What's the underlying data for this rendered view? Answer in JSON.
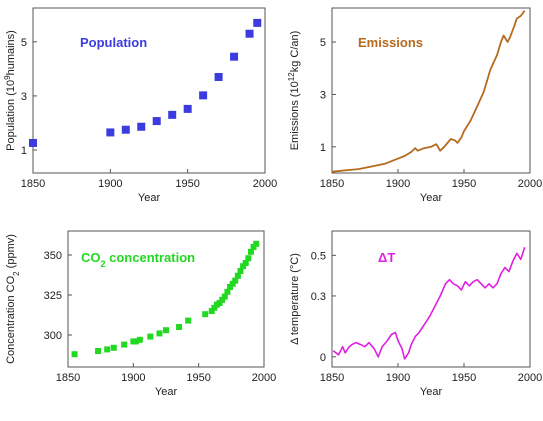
{
  "chart_data": [
    {
      "type": "scatter",
      "title": "Population",
      "color": "#3b3bdf",
      "xlabel": "Year",
      "ylabel": "Population (10^9 humains)",
      "ylabel_parts": [
        "Population (10",
        "9",
        "humains)"
      ],
      "xlim": [
        1850,
        2000
      ],
      "ylim": [
        0.15,
        6.25
      ],
      "xticks": [
        "1850",
        "1900",
        "1950",
        "2000"
      ],
      "yticks": [
        "1",
        "3",
        "5"
      ],
      "grid": false,
      "series": [
        {
          "x": [
            1850,
            1900,
            1910,
            1920,
            1930,
            1940,
            1950,
            1960,
            1970,
            1980,
            1990,
            1995
          ],
          "y": [
            1.26,
            1.65,
            1.75,
            1.86,
            2.07,
            2.3,
            2.52,
            3.02,
            3.7,
            4.45,
            5.3,
            5.7
          ]
        }
      ]
    },
    {
      "type": "line",
      "title": "Emissions",
      "color": "#b56a1e",
      "xlabel": "Year",
      "ylabel": "Emissions (10^12 kg C/an)",
      "ylabel_parts": [
        "Emissions (10",
        "12",
        "kg C/an)"
      ],
      "xlim": [
        1850,
        2000
      ],
      "ylim": [
        0,
        6.3
      ],
      "xticks": [
        "1850",
        "1900",
        "1950",
        "2000"
      ],
      "yticks": [
        "1",
        "3",
        "5"
      ],
      "grid": false,
      "series": [
        {
          "x": [
            1850,
            1860,
            1870,
            1880,
            1890,
            1900,
            1905,
            1910,
            1913,
            1915,
            1920,
            1925,
            1929,
            1932,
            1935,
            1940,
            1943,
            1945,
            1948,
            1950,
            1955,
            1960,
            1965,
            1970,
            1975,
            1978,
            1980,
            1983,
            1985,
            1988,
            1990,
            1993,
            1996
          ],
          "y": [
            0.05,
            0.1,
            0.15,
            0.25,
            0.35,
            0.55,
            0.65,
            0.8,
            0.95,
            0.85,
            0.95,
            1.0,
            1.1,
            0.85,
            1.0,
            1.3,
            1.25,
            1.15,
            1.35,
            1.6,
            2.0,
            2.55,
            3.1,
            3.95,
            4.5,
            5.0,
            5.25,
            5.0,
            5.2,
            5.6,
            5.9,
            6.0,
            6.2
          ]
        }
      ]
    },
    {
      "type": "scatter",
      "title": "CO2 concentration",
      "title_parts": [
        "CO",
        "2",
        " concentration"
      ],
      "color": "#22d922",
      "xlabel": "Year",
      "ylabel": "Concentration CO2 (ppmv)",
      "ylabel_parts": [
        "Concentration CO",
        "2",
        " (ppmv)"
      ],
      "xlim": [
        1850,
        2000
      ],
      "ylim": [
        280,
        365
      ],
      "xticks": [
        "1850",
        "1900",
        "1950",
        "2000"
      ],
      "yticks": [
        "300",
        "325",
        "350"
      ],
      "grid": false,
      "series": [
        {
          "x": [
            1855,
            1873,
            1880,
            1885,
            1893,
            1900,
            1902,
            1905,
            1913,
            1920,
            1925,
            1935,
            1942,
            1955,
            1960,
            1962,
            1964,
            1966,
            1968,
            1970,
            1972,
            1974,
            1976,
            1978,
            1980,
            1982,
            1984,
            1986,
            1988,
            1990,
            1992,
            1994
          ],
          "y": [
            288,
            290,
            291,
            292,
            294,
            296,
            296,
            297,
            299,
            301,
            303,
            305,
            309,
            313,
            315,
            317,
            319,
            320,
            322,
            324,
            327,
            330,
            332,
            334,
            337,
            340,
            343,
            345,
            348,
            352,
            355,
            357
          ]
        }
      ]
    },
    {
      "type": "line",
      "title": "ΔT",
      "color": "#e01fe0",
      "xlabel": "Year",
      "ylabel": "Δ temperature (°C)",
      "xlim": [
        1850,
        2000
      ],
      "ylim": [
        -0.05,
        0.62
      ],
      "xticks": [
        "1850",
        "1900",
        "1950",
        "2000"
      ],
      "yticks": [
        "0",
        "0.3",
        "0.5"
      ],
      "yticks_values": [
        0,
        0.3,
        0.5
      ],
      "grid": false,
      "series": [
        {
          "x": [
            1851,
            1855,
            1858,
            1860,
            1863,
            1865,
            1868,
            1872,
            1875,
            1878,
            1882,
            1885,
            1888,
            1892,
            1895,
            1898,
            1900,
            1903,
            1905,
            1908,
            1910,
            1913,
            1916,
            1920,
            1924,
            1928,
            1932,
            1936,
            1939,
            1942,
            1945,
            1948,
            1951,
            1954,
            1957,
            1960,
            1963,
            1966,
            1969,
            1972,
            1975,
            1978,
            1981,
            1984,
            1987,
            1990,
            1993,
            1996
          ],
          "y": [
            0.03,
            0.01,
            0.05,
            0.02,
            0.05,
            0.06,
            0.07,
            0.06,
            0.05,
            0.07,
            0.04,
            0.0,
            0.05,
            0.08,
            0.11,
            0.12,
            0.08,
            0.04,
            -0.01,
            0.02,
            0.06,
            0.1,
            0.12,
            0.16,
            0.2,
            0.25,
            0.3,
            0.36,
            0.38,
            0.36,
            0.35,
            0.33,
            0.37,
            0.35,
            0.37,
            0.38,
            0.36,
            0.34,
            0.36,
            0.34,
            0.36,
            0.41,
            0.44,
            0.42,
            0.47,
            0.51,
            0.48,
            0.54
          ]
        }
      ]
    }
  ]
}
